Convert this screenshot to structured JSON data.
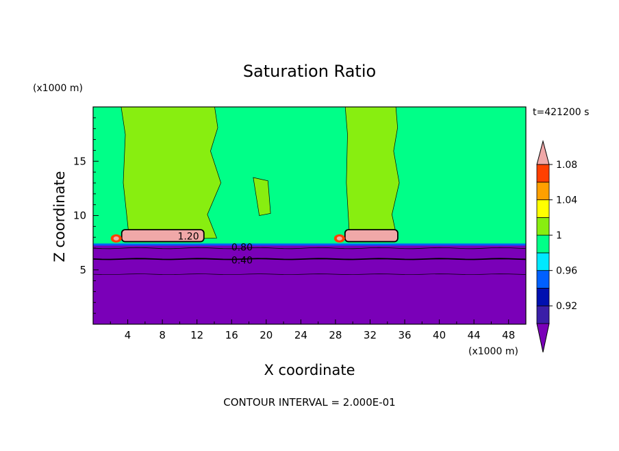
{
  "chart_data": {
    "type": "heatmap",
    "title": "Saturation Ratio",
    "xlabel": "X coordinate",
    "ylabel": "Z coordinate",
    "x_unit": "(x1000 m)",
    "y_unit": "(x1000 m)",
    "time_label": "t=421200 s",
    "footer": "CONTOUR INTERVAL = 2.000E-01",
    "xlim": [
      0,
      50
    ],
    "ylim": [
      0,
      20
    ],
    "x_ticks": [
      "4",
      "8",
      "12",
      "16",
      "20",
      "24",
      "28",
      "32",
      "36",
      "40",
      "44",
      "48"
    ],
    "y_ticks": [
      "5",
      "10",
      "15"
    ],
    "colorbar": {
      "levels": [
        0.9,
        0.92,
        0.94,
        0.96,
        0.98,
        1.0,
        1.02,
        1.04,
        1.06,
        1.08,
        1.1
      ],
      "labels": [
        "0.92",
        "0.96",
        "1",
        "1.04",
        "1.08"
      ],
      "colors": [
        "#7a00b8",
        "#3a1fa8",
        "#0010b0",
        "#0060ff",
        "#00e8ff",
        "#00ff88",
        "#88ee10",
        "#ffff00",
        "#ffa000",
        "#ff4000",
        "#f0a8a8"
      ],
      "extend": "both"
    },
    "contour_labels": [
      "1.20",
      "0.80",
      "0.40"
    ],
    "features": {
      "moist_layer_top_z": 7.3,
      "contour_0_40_z": 6.0,
      "contour_0_20_z": 4.6,
      "cloud_patches": [
        {
          "x_start": 3.3,
          "x_end": 12.8,
          "z_base": 7.6,
          "z_top": 8.7,
          "value": 1.2
        },
        {
          "x_start": 29.1,
          "x_end": 35.2,
          "z_base": 7.6,
          "z_top": 8.7,
          "value": 1.2
        }
      ],
      "supersaturated_columns": [
        {
          "x_start": 3.0,
          "x_end": 15.0,
          "z_top": 20
        },
        {
          "x_start": 29.0,
          "x_end": 35.5,
          "z_top": 20
        }
      ]
    }
  }
}
